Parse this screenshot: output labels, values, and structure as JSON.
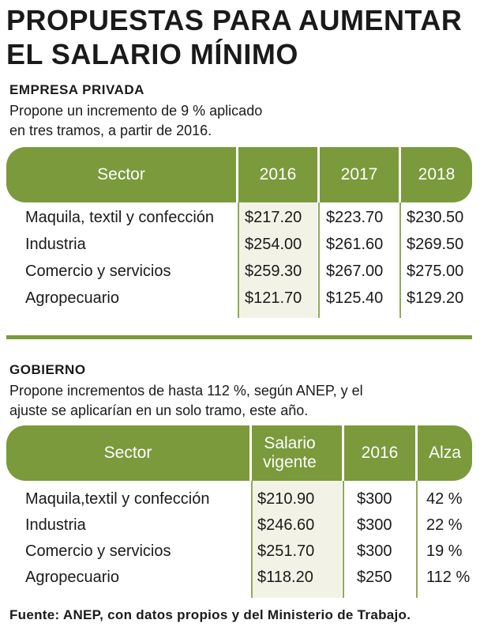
{
  "title": {
    "line1": "PROPUESTAS PARA AUMENTAR",
    "line2": "EL SALARIO MÍNIMO"
  },
  "source": "Fuente: ANEP, con datos propios y del Ministerio de Trabajo.",
  "colors": {
    "header_green": "#7a9a3c",
    "highlight_column": "#f2f3e6",
    "text": "#1a1a1a"
  },
  "chart_data": [
    {
      "type": "table",
      "title": "EMPRESA PRIVADA",
      "description": [
        "Propone un incremento de 9 % aplicado",
        "en tres tramos, a partir de 2016."
      ],
      "columns": [
        "Sector",
        "2016",
        "2017",
        "2018"
      ],
      "rows": [
        [
          "Maquila, textil y confección",
          "$217.20",
          "$223.70",
          "$230.50"
        ],
        [
          "Industria",
          "$254.00",
          "$261.60",
          "$269.50"
        ],
        [
          "Comercio y servicios",
          "$259.30",
          "$267.00",
          "$275.00"
        ],
        [
          "Agropecuario",
          "$121.70",
          "$125.40",
          "$129.20"
        ]
      ]
    },
    {
      "type": "table",
      "title": "GOBIERNO",
      "description": [
        "Propone incrementos de hasta 112 %, según ANEP, y el",
        "ajuste se aplicarían en un solo tramo, este año."
      ],
      "columns": [
        "Sector",
        "Salario vigente",
        "2016",
        "Alza"
      ],
      "rows": [
        [
          "Maquila,textil y confección",
          "$210.90",
          "$300",
          "42 %"
        ],
        [
          "Industria",
          "$246.60",
          "$300",
          "22 %"
        ],
        [
          "Comercio y servicios",
          "$251.70",
          "$300",
          "19 %"
        ],
        [
          "Agropecuario",
          "$118.20",
          "$250",
          "112 %"
        ]
      ]
    }
  ]
}
